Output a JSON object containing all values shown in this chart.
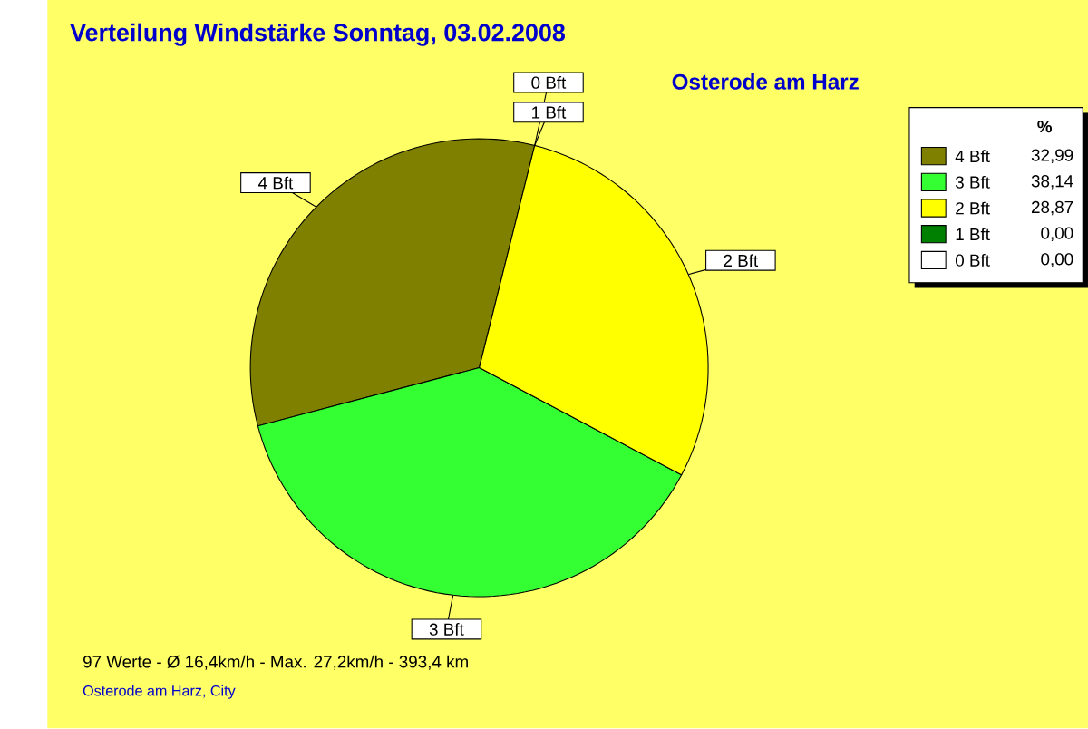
{
  "chart_data": {
    "type": "pie",
    "title": "Verteilung Windstärke  Sonntag, 03.02.2008",
    "subtitle": "Osterode am Harz",
    "legend_title": "%",
    "categories": [
      "4 Bft",
      "3 Bft",
      "2 Bft",
      "1 Bft",
      "0 Bft"
    ],
    "values": [
      32.99,
      38.14,
      28.87,
      0,
      0
    ],
    "value_labels": [
      "32,99",
      "38,14",
      "28,87",
      "0,00",
      "0,00"
    ],
    "colors": [
      "#808000",
      "#33ff33",
      "#ffff00",
      "#008000",
      "#ffffff"
    ],
    "legend": "top right",
    "annotations": [
      "97 Werte   -   Ø 16,4km/h  -  Max. 27,2km/h   -   393,4 km",
      "Osterode am Harz, City"
    ]
  }
}
